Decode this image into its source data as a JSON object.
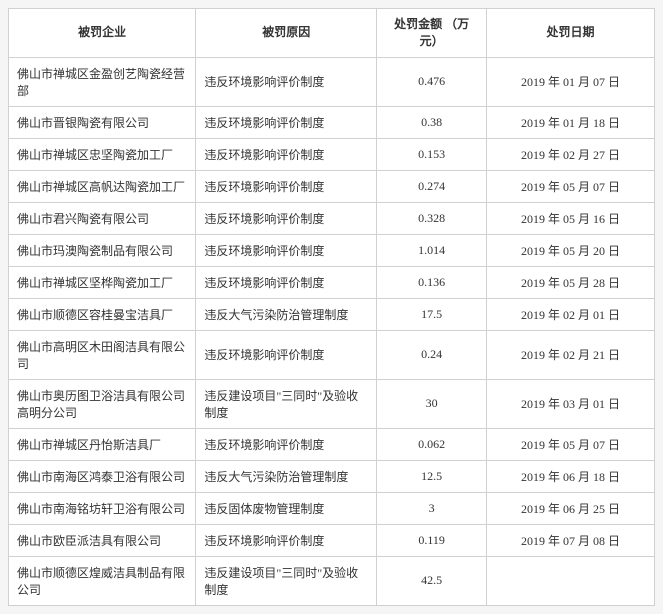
{
  "table": {
    "columns": [
      "被罚企业",
      "被罚原因",
      "处罚金额\n（万元）",
      "处罚日期"
    ],
    "rows": [
      [
        "佛山市禅城区金盈创艺陶瓷经营部",
        "违反环境影响评价制度",
        "0.476",
        "2019 年 01 月 07 日"
      ],
      [
        "佛山市晋银陶瓷有限公司",
        "违反环境影响评价制度",
        "0.38",
        "2019 年 01 月 18 日"
      ],
      [
        "佛山市禅城区忠坚陶瓷加工厂",
        "违反环境影响评价制度",
        "0.153",
        "2019 年 02 月 27 日"
      ],
      [
        "佛山市禅城区高帆达陶瓷加工厂",
        "违反环境影响评价制度",
        "0.274",
        "2019 年 05 月 07 日"
      ],
      [
        "佛山市君兴陶瓷有限公司",
        "违反环境影响评价制度",
        "0.328",
        "2019 年 05 月 16 日"
      ],
      [
        "佛山市玛澳陶瓷制品有限公司",
        "违反环境影响评价制度",
        "1.014",
        "2019 年 05 月 20 日"
      ],
      [
        "佛山市禅城区坚桦陶瓷加工厂",
        "违反环境影响评价制度",
        "0.136",
        "2019 年 05 月 28 日"
      ],
      [
        "佛山市顺德区容桂曼宝洁具厂",
        "违反大气污染防治管理制度",
        "17.5",
        "2019 年 02 月 01 日"
      ],
      [
        "佛山市高明区木田阁洁具有限公司",
        "违反环境影响评价制度",
        "0.24",
        "2019 年 02 月 21 日"
      ],
      [
        "佛山市奥历图卫浴洁具有限公司高明分公司",
        "违反建设项目\"三同时\"及验收制度",
        "30",
        "2019 年 03 月 01 日"
      ],
      [
        "佛山市禅城区丹怡斯洁具厂",
        "违反环境影响评价制度",
        "0.062",
        "2019 年 05 月 07 日"
      ],
      [
        "佛山市南海区鸿泰卫浴有限公司",
        "违反大气污染防治管理制度",
        "12.5",
        "2019 年 06 月 18 日"
      ],
      [
        "佛山市南海铭坊轩卫浴有限公司",
        "违反固体废物管理制度",
        "3",
        "2019 年 06 月 25 日"
      ],
      [
        "佛山市欧臣派洁具有限公司",
        "违反环境影响评价制度",
        "0.119",
        "2019 年 07 月 08 日"
      ],
      [
        "佛山市顺德区煌威洁具制品有限公司",
        "违反建设项目\"三同时\"及验收制度",
        "42.5",
        ""
      ]
    ],
    "header_bg": "#ffffff",
    "border_color": "#d0d0d0",
    "font_size": 12,
    "text_color": "#333333"
  }
}
